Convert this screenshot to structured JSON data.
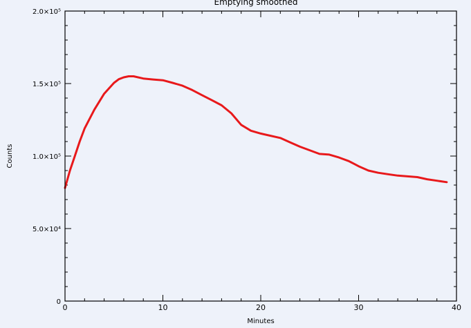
{
  "chart_data": {
    "type": "line",
    "title": "Emptying  smoothed",
    "xlabel": "Minutes",
    "ylabel": "Counts",
    "xlim": [
      0,
      40
    ],
    "ylim": [
      0,
      200000
    ],
    "x_ticks": [
      {
        "value": 0,
        "label": "0"
      },
      {
        "value": 10,
        "label": "10"
      },
      {
        "value": 20,
        "label": "20"
      },
      {
        "value": 30,
        "label": "30"
      },
      {
        "value": 40,
        "label": "40"
      }
    ],
    "y_ticks": [
      {
        "value": 0,
        "label": "0"
      },
      {
        "value": 50000,
        "label": "5.0×10⁴"
      },
      {
        "value": 100000,
        "label": "1.0×10⁵"
      },
      {
        "value": 150000,
        "label": "1.5×10⁵"
      },
      {
        "value": 200000,
        "label": "2.0×10⁵"
      }
    ],
    "grid": false,
    "line_color": "#e8191b",
    "series": [
      {
        "x": [
          0,
          0.5,
          1,
          1.5,
          2,
          3,
          4,
          5,
          5.5,
          6,
          6.5,
          7,
          8,
          9,
          10,
          11,
          12,
          13,
          14,
          15,
          16,
          17,
          18,
          19,
          20,
          21,
          22,
          23,
          24,
          25,
          26,
          27,
          28,
          29,
          30,
          31,
          32,
          33,
          34,
          35,
          36,
          37,
          38,
          39
        ],
        "y": [
          78000,
          90000,
          100000,
          110000,
          119000,
          132000,
          143000,
          150500,
          153000,
          154300,
          155000,
          155000,
          153500,
          152800,
          152300,
          150500,
          148500,
          145500,
          142000,
          138500,
          135000,
          129500,
          121500,
          117500,
          115500,
          114000,
          112500,
          109500,
          106500,
          104000,
          101500,
          101000,
          99000,
          96500,
          93000,
          90000,
          88500,
          87500,
          86500,
          86000,
          85500,
          84000,
          83000,
          82000
        ]
      }
    ]
  }
}
